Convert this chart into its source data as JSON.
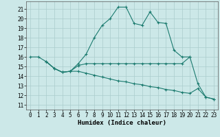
{
  "xlabel": "Humidex (Indice chaleur)",
  "bg_color": "#cce8e8",
  "grid_color": "#aacccc",
  "line_color": "#1a7a6e",
  "xlim": [
    -0.5,
    23.5
  ],
  "ylim": [
    10.5,
    21.8
  ],
  "yticks": [
    11,
    12,
    13,
    14,
    15,
    16,
    17,
    18,
    19,
    20,
    21
  ],
  "xticks": [
    0,
    1,
    2,
    3,
    4,
    5,
    6,
    7,
    8,
    9,
    10,
    11,
    12,
    13,
    14,
    15,
    16,
    17,
    18,
    19,
    20,
    21,
    22,
    23
  ],
  "line1_x": [
    0,
    1,
    2,
    3,
    4,
    5,
    6,
    7,
    8,
    9,
    10,
    11,
    12,
    13,
    14,
    15,
    16,
    17,
    18,
    19,
    20
  ],
  "line1_y": [
    16,
    16,
    15.5,
    14.8,
    14.4,
    14.5,
    15.3,
    16.3,
    18.0,
    19.3,
    20.0,
    21.2,
    21.2,
    19.5,
    19.3,
    20.7,
    19.6,
    19.5,
    16.7,
    16.0,
    16.0
  ],
  "line2_x": [
    2,
    3,
    4,
    5,
    6,
    7,
    8,
    9,
    10,
    11,
    12,
    13,
    14,
    15,
    16,
    17,
    18,
    19,
    20,
    21,
    22,
    23
  ],
  "line2_y": [
    15.5,
    14.8,
    14.4,
    14.5,
    15.1,
    15.3,
    15.3,
    15.3,
    15.3,
    15.3,
    15.3,
    15.3,
    15.3,
    15.3,
    15.3,
    15.3,
    15.3,
    15.3,
    16.0,
    13.2,
    11.8,
    11.6
  ],
  "line3_x": [
    2,
    3,
    4,
    5,
    6,
    7,
    8,
    9,
    10,
    11,
    12,
    13,
    14,
    15,
    16,
    17,
    18,
    19,
    20,
    21,
    22,
    23
  ],
  "line3_y": [
    15.5,
    14.8,
    14.4,
    14.5,
    14.5,
    14.3,
    14.1,
    13.9,
    13.7,
    13.5,
    13.4,
    13.2,
    13.1,
    12.9,
    12.8,
    12.6,
    12.5,
    12.3,
    12.2,
    12.7,
    11.8,
    11.6
  ],
  "tick_fontsize": 5.5,
  "xlabel_fontsize": 6.5
}
